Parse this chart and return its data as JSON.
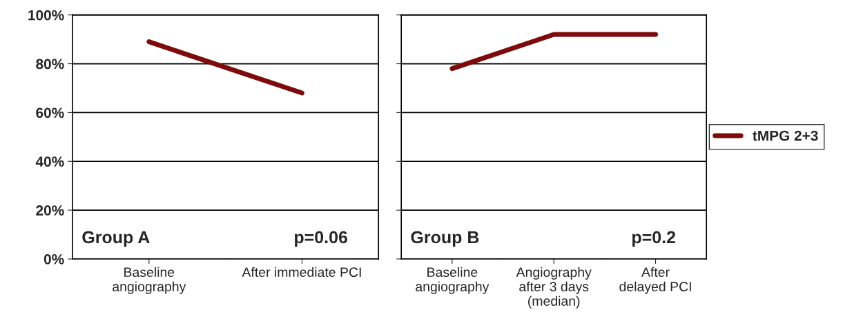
{
  "chart_data": [
    {
      "type": "line",
      "categories": [
        "Baseline\nangiography",
        "After immediate PCI"
      ],
      "series": [
        {
          "color": "#7f0a0a",
          "values": [
            89,
            68
          ]
        }
      ],
      "ylim": [
        0,
        100
      ],
      "yticks": [
        {
          "value": 0,
          "label": "0%"
        },
        {
          "value": 20,
          "label": "20%"
        },
        {
          "value": 40,
          "label": "40%"
        },
        {
          "value": 60,
          "label": "60%"
        },
        {
          "value": 80,
          "label": "80%"
        },
        {
          "value": 100,
          "label": "100%"
        }
      ],
      "grid": "y",
      "marker": "none",
      "line_style": "solid",
      "annotations": [
        "Group A",
        "p=0.06"
      ]
    },
    {
      "type": "line",
      "categories": [
        "Baseline\nangiography",
        "Angiography\nafter 3 days\n(median)",
        "After\ndelayed PCI"
      ],
      "series": [
        {
          "name": "tMPG 2+3",
          "color": "#7f0a0a",
          "values": [
            78,
            92,
            92
          ]
        }
      ],
      "ylim": [
        0,
        100
      ],
      "yticks": [
        {
          "value": 0,
          "label": null
        },
        {
          "value": 20,
          "label": null
        },
        {
          "value": 40,
          "label": null
        },
        {
          "value": 60,
          "label": null
        },
        {
          "value": 80,
          "label": null
        },
        {
          "value": 100,
          "label": null
        }
      ],
      "tick_labels": "x",
      "grid": "y",
      "marker": "none",
      "line_style": "solid",
      "legend": "right",
      "annotations": [
        "Group B",
        "p=0.2"
      ]
    }
  ]
}
